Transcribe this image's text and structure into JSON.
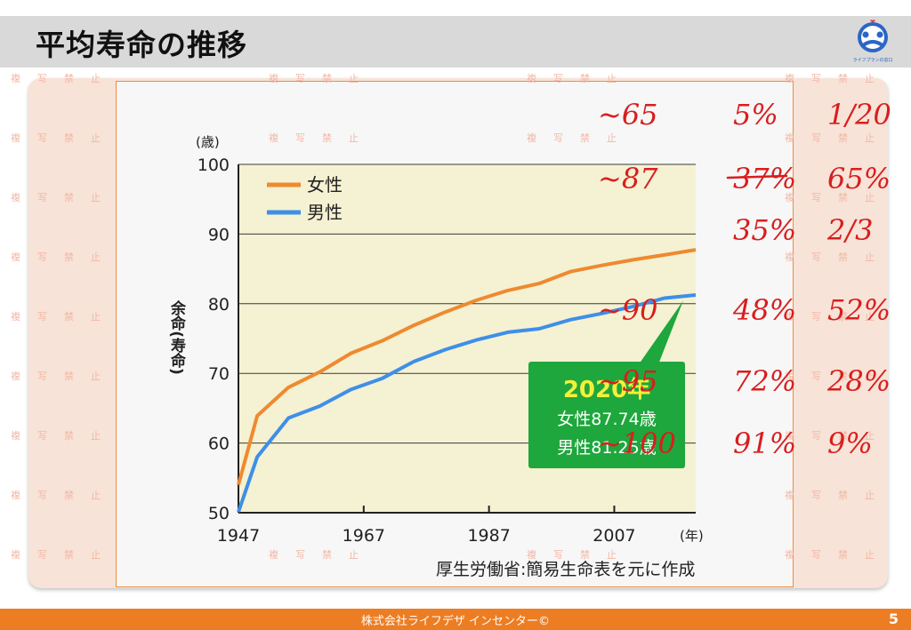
{
  "slide": {
    "title": "平均寿命の推移",
    "footer": "株式会社ライフデザ インセンター©",
    "page_number": "5",
    "watermark_text": "複写禁止",
    "logo_label": "ライフプランの窓口"
  },
  "colors": {
    "female": "#ee8a2f",
    "male": "#3e8fe8",
    "callout": "#1ea73c",
    "callout_title": "#f6ef3a",
    "accent": "#ed7d22",
    "handwriting": "#d81e1e"
  },
  "chart_data": {
    "type": "line",
    "ylabel": "余命(寿命)",
    "yunit": "(歳)",
    "xunit": "(年)",
    "ylim": [
      50,
      100
    ],
    "xlim": [
      1947,
      2020
    ],
    "y_ticks": [
      "50",
      "60",
      "70",
      "80",
      "90",
      "100"
    ],
    "x_ticks": [
      "1947",
      "1967",
      "1987",
      "2007"
    ],
    "legend_position": "top-left",
    "grid": true,
    "series": [
      {
        "name": "女性",
        "color": "#ee8a2f",
        "points": [
          [
            1947,
            54.0
          ],
          [
            1950,
            63.9
          ],
          [
            1955,
            68.0
          ],
          [
            1960,
            70.2
          ],
          [
            1965,
            72.9
          ],
          [
            1970,
            74.7
          ],
          [
            1975,
            76.9
          ],
          [
            1980,
            78.8
          ],
          [
            1985,
            80.5
          ],
          [
            1990,
            81.9
          ],
          [
            1995,
            82.9
          ],
          [
            2000,
            84.6
          ],
          [
            2005,
            85.5
          ],
          [
            2010,
            86.3
          ],
          [
            2015,
            87.0
          ],
          [
            2020,
            87.74
          ]
        ]
      },
      {
        "name": "男性",
        "color": "#3e8fe8",
        "points": [
          [
            1947,
            50.1
          ],
          [
            1950,
            58.0
          ],
          [
            1955,
            63.6
          ],
          [
            1960,
            65.3
          ],
          [
            1965,
            67.7
          ],
          [
            1970,
            69.3
          ],
          [
            1975,
            71.7
          ],
          [
            1980,
            73.4
          ],
          [
            1985,
            74.8
          ],
          [
            1990,
            75.9
          ],
          [
            1995,
            76.4
          ],
          [
            2000,
            77.7
          ],
          [
            2005,
            78.6
          ],
          [
            2010,
            79.6
          ],
          [
            2015,
            80.8
          ],
          [
            2020,
            81.25
          ]
        ]
      }
    ],
    "callout": {
      "title": "2020年",
      "female_line": "女性87.74歳",
      "male_line": "男性81.25歳"
    },
    "source": "厚生労働省:簡易生命表を元に作成"
  },
  "handwritten_notes": {
    "rows": [
      [
        "~65",
        "5%",
        "1/20"
      ],
      [
        "~87",
        "37%",
        "65%"
      ],
      [
        "",
        "35%",
        "2/3"
      ],
      [
        "~90",
        "48%",
        "52%"
      ],
      [
        "~95",
        "72%",
        "28%"
      ],
      [
        "~100",
        "91%",
        "9%"
      ]
    ]
  }
}
